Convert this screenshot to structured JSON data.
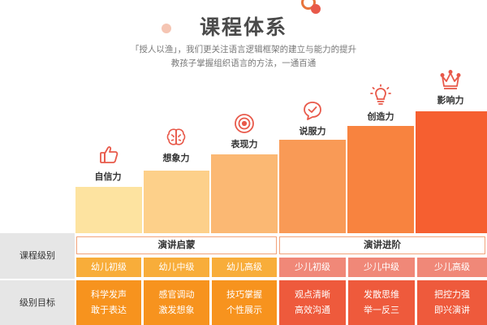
{
  "title": "课程体系",
  "intro": {
    "line1": "「授人以渔」，我们更关注语言逻辑框架的建立与能力的提升",
    "line2": "教孩子掌握组织语言的方法，一通百通"
  },
  "stages": [
    {
      "label": "自信力",
      "icon": "thumbs-up-icon"
    },
    {
      "label": "想象力",
      "icon": "brain-icon"
    },
    {
      "label": "表现力",
      "icon": "target-icon"
    },
    {
      "label": "说服力",
      "icon": "speech-bubble-check-icon"
    },
    {
      "label": "创造力",
      "icon": "lightbulb-icon"
    },
    {
      "label": "影响力",
      "icon": "crown-icon"
    }
  ],
  "table": {
    "row1_header": "课程级别",
    "row2_header": "级别目标",
    "groups": [
      "演讲启蒙",
      "演讲进阶"
    ],
    "levels": [
      "幼儿初级",
      "幼儿中级",
      "幼儿高级",
      "少儿初级",
      "少儿中级",
      "少儿高级"
    ],
    "goals": [
      [
        "科学发声",
        "敢于表达"
      ],
      [
        "感官调动",
        "激发想象"
      ],
      [
        "技巧掌握",
        "个性展示"
      ],
      [
        "观点清晰",
        "高效沟通"
      ],
      [
        "发散思维",
        "举一反三"
      ],
      [
        "把控力强",
        "即兴演讲"
      ]
    ]
  },
  "colors": {
    "bars": [
      "#fde3a0",
      "#fdd08a",
      "#fbb873",
      "#f99a56",
      "#f8833f",
      "#f65f30"
    ],
    "levels": [
      "#f8ad3a",
      "#f8ad3a",
      "#f8ad3a",
      "#f08878",
      "#f08878",
      "#f08878"
    ],
    "goals": [
      "#f7931e",
      "#f7931e",
      "#f7931e",
      "#ee5a3c",
      "#ee5a3c",
      "#ee5a3c"
    ]
  }
}
